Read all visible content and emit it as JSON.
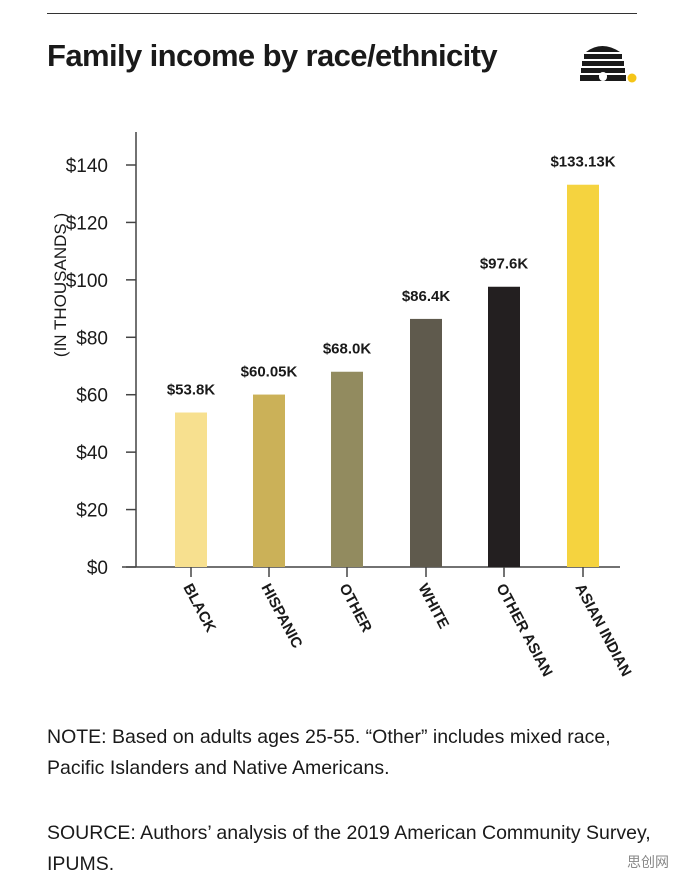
{
  "title": "Family income by race/ethnicity",
  "note": "NOTE: Based on adults ages 25-55. “Other” includes mixed race, Pacific Islanders and Native Americans.",
  "source": "SOURCE: Authors’ analysis of the 2019 American Community Survey, IPUMS.",
  "logo_icon": "beehive-icon",
  "watermark": "思创网",
  "chart_data": {
    "type": "bar",
    "title": "Family income by race/ethnicity",
    "xlabel": "",
    "ylabel": "(IN THOUSANDS )",
    "ylim": [
      0,
      140
    ],
    "yticks": [
      0,
      20,
      40,
      60,
      80,
      100,
      120,
      140
    ],
    "ytick_labels": [
      "$0",
      "$20",
      "$40",
      "$60",
      "$80",
      "$100",
      "$120",
      "$140"
    ],
    "grid": false,
    "categories": [
      "BLACK",
      "HISPANIC",
      "OTHER",
      "WHITE",
      "OTHER ASIAN",
      "ASIAN INDIAN"
    ],
    "values": [
      53.8,
      60.05,
      68.0,
      86.4,
      97.6,
      133.13
    ],
    "data_labels": [
      "$53.8K",
      "$60.05K",
      "$68.0K",
      "$86.4K",
      "$97.6K",
      "$133.13K"
    ],
    "colors": [
      "#f7e08f",
      "#cbb158",
      "#928b5f",
      "#5f5a4d",
      "#231f20",
      "#f5d33f"
    ]
  }
}
